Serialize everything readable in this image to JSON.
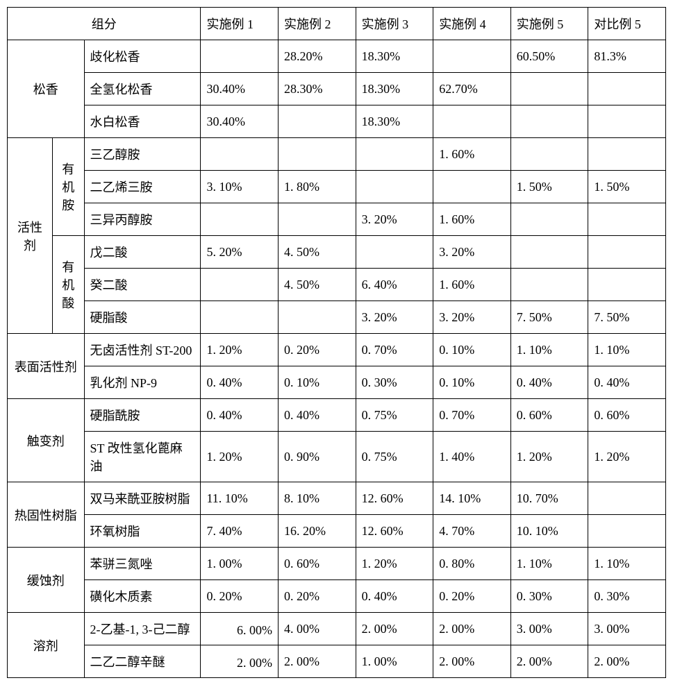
{
  "header": {
    "component": "组分",
    "ex1": "实施例 1",
    "ex2": "实施例 2",
    "ex3": "实施例 3",
    "ex4": "实施例 4",
    "ex5": "实施例 5",
    "comp5": "对比例 5"
  },
  "groups": {
    "rosin": "松香",
    "activator": "活性剂",
    "activator_amine": "有机胺",
    "activator_acid": "有机酸",
    "surfactant": "表面活性剂",
    "thixotropic": "触变剂",
    "thermoset": "热固性树脂",
    "corrosion": "缓蚀剂",
    "solvent": "溶剂"
  },
  "rows": {
    "r1": {
      "item": "歧化松香",
      "ex1": "",
      "ex2": "28.20%",
      "ex3": "18.30%",
      "ex4": "",
      "ex5": "60.50%",
      "comp5": "81.3%"
    },
    "r2": {
      "item": "全氢化松香",
      "ex1": "30.40%",
      "ex2": "28.30%",
      "ex3": "18.30%",
      "ex4": "62.70%",
      "ex5": "",
      "comp5": ""
    },
    "r3": {
      "item": "水白松香",
      "ex1": "30.40%",
      "ex2": "",
      "ex3": "18.30%",
      "ex4": "",
      "ex5": "",
      "comp5": ""
    },
    "r4": {
      "item": "三乙醇胺",
      "ex1": "",
      "ex2": "",
      "ex3": "",
      "ex4": "1. 60%",
      "ex5": "",
      "comp5": ""
    },
    "r5": {
      "item": "二乙烯三胺",
      "ex1": "3. 10%",
      "ex2": "1. 80%",
      "ex3": "",
      "ex4": "",
      "ex5": "1. 50%",
      "comp5": "1. 50%"
    },
    "r6": {
      "item": "三异丙醇胺",
      "ex1": "",
      "ex2": "",
      "ex3": "3. 20%",
      "ex4": "1. 60%",
      "ex5": "",
      "comp5": ""
    },
    "r7": {
      "item": "戊二酸",
      "ex1": "5. 20%",
      "ex2": "4. 50%",
      "ex3": "",
      "ex4": "3. 20%",
      "ex5": "",
      "comp5": ""
    },
    "r8": {
      "item": "癸二酸",
      "ex1": "",
      "ex2": "4. 50%",
      "ex3": "6. 40%",
      "ex4": "1. 60%",
      "ex5": "",
      "comp5": ""
    },
    "r9": {
      "item": "硬脂酸",
      "ex1": "",
      "ex2": "",
      "ex3": "3. 20%",
      "ex4": "3. 20%",
      "ex5": "7. 50%",
      "comp5": "7. 50%"
    },
    "r10": {
      "item": "无卤活性剂 ST-200",
      "ex1": "1. 20%",
      "ex2": "0. 20%",
      "ex3": "0. 70%",
      "ex4": "0. 10%",
      "ex5": "1. 10%",
      "comp5": "1. 10%"
    },
    "r11": {
      "item": "乳化剂 NP-9",
      "ex1": "0. 40%",
      "ex2": "0. 10%",
      "ex3": "0. 30%",
      "ex4": "0. 10%",
      "ex5": "0. 40%",
      "comp5": "0. 40%"
    },
    "r12": {
      "item": "硬脂酰胺",
      "ex1": "0. 40%",
      "ex2": "0. 40%",
      "ex3": "0. 75%",
      "ex4": "0. 70%",
      "ex5": "0. 60%",
      "comp5": "0. 60%"
    },
    "r13": {
      "item": "ST 改性氢化蓖麻油",
      "ex1": "1. 20%",
      "ex2": "0. 90%",
      "ex3": "0. 75%",
      "ex4": "1. 40%",
      "ex5": "1. 20%",
      "comp5": "1. 20%"
    },
    "r14": {
      "item": "双马来酰亚胺树脂",
      "ex1": "11. 10%",
      "ex2": "8. 10%",
      "ex3": "12. 60%",
      "ex4": "14. 10%",
      "ex5": "10. 70%",
      "comp5": ""
    },
    "r15": {
      "item": "环氧树脂",
      "ex1": "7. 40%",
      "ex2": "16. 20%",
      "ex3": "12. 60%",
      "ex4": "4. 70%",
      "ex5": "10. 10%",
      "comp5": ""
    },
    "r16": {
      "item": "苯骈三氮唑",
      "ex1": "1. 00%",
      "ex2": "0. 60%",
      "ex3": "1. 20%",
      "ex4": "0. 80%",
      "ex5": "1. 10%",
      "comp5": "1. 10%"
    },
    "r17": {
      "item": "磺化木质素",
      "ex1": "0. 20%",
      "ex2": "0. 20%",
      "ex3": "0. 40%",
      "ex4": "0. 20%",
      "ex5": "0. 30%",
      "comp5": "0. 30%"
    },
    "r18": {
      "item": "2-乙基-1, 3-己二醇",
      "ex1": "6. 00%",
      "ex2": "4. 00%",
      "ex3": "2. 00%",
      "ex4": "2. 00%",
      "ex5": "3. 00%",
      "comp5": "3. 00%"
    },
    "r19": {
      "item": "二乙二醇辛醚",
      "ex1": "2. 00%",
      "ex2": "2. 00%",
      "ex3": "1. 00%",
      "ex4": "2. 00%",
      "ex5": "2. 00%",
      "comp5": "2. 00%"
    }
  }
}
